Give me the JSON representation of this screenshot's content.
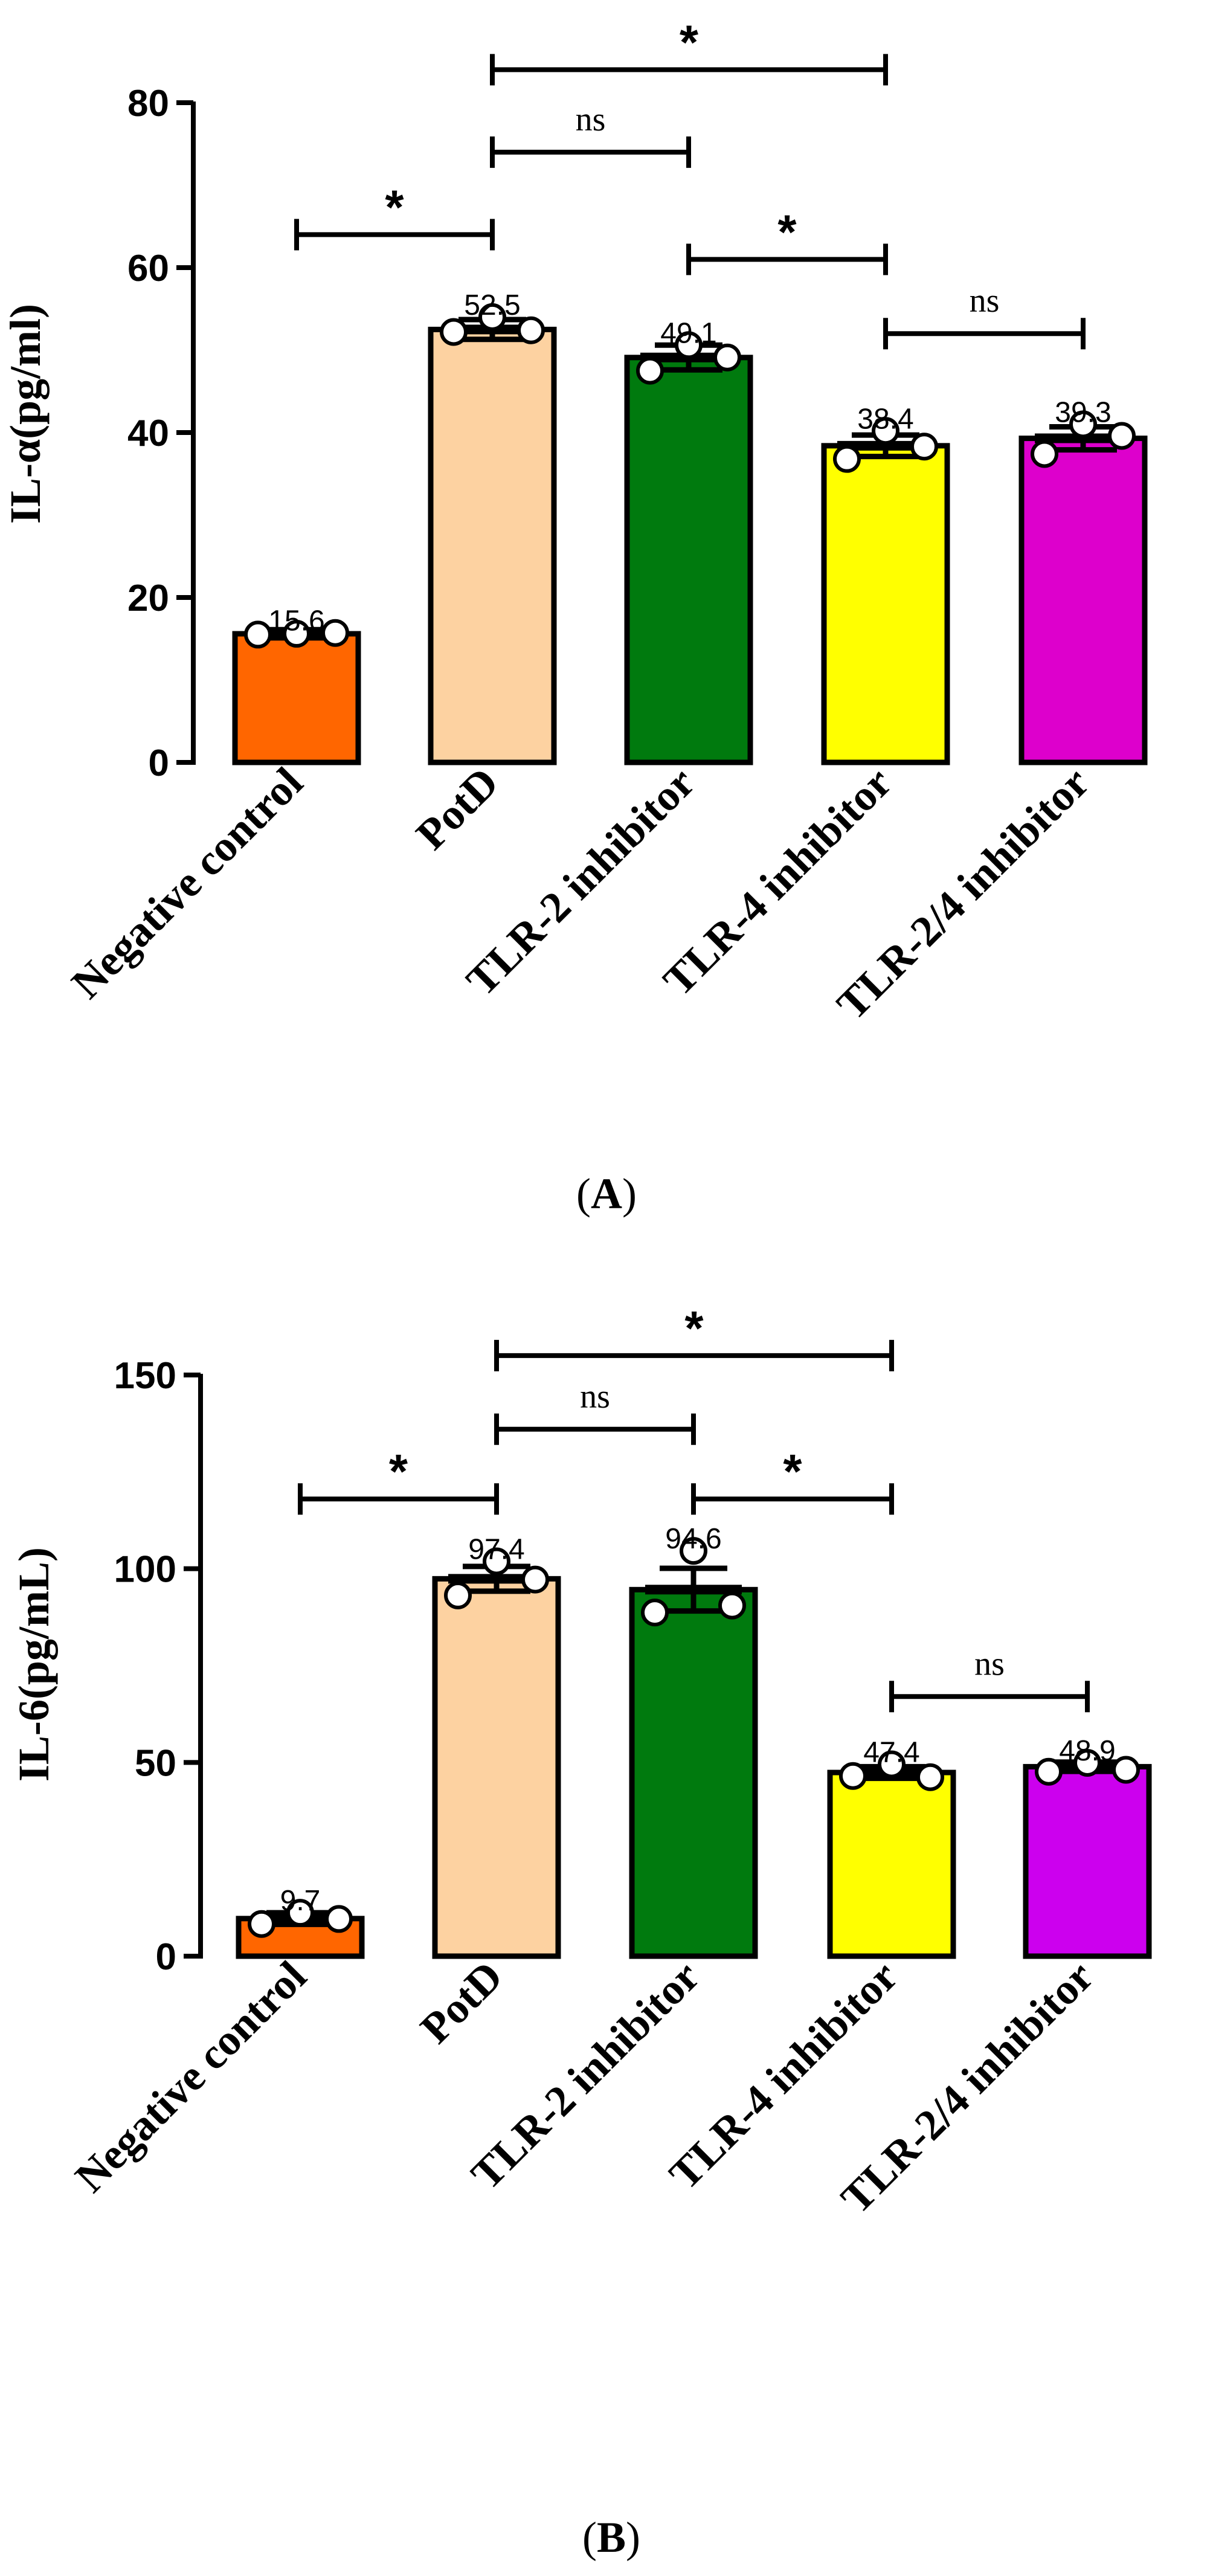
{
  "chart_data": [
    {
      "type": "bar",
      "panel_label": "(A)",
      "panel_letter": "A",
      "ylabel": "IL-α(pg/ml)",
      "ylim": [
        0,
        80
      ],
      "yticks": [
        0,
        20,
        40,
        60,
        80
      ],
      "categories": [
        "Negative control",
        "PotD",
        "TLR-2 inhibitor",
        "TLR-4 inhibitor",
        "TLR-2/4 inhibitor"
      ],
      "values": [
        15.6,
        52.5,
        49.1,
        38.4,
        39.3
      ],
      "value_labels": [
        "15.6",
        "52.5",
        "49.1",
        "38.4",
        "39.3"
      ],
      "sem": [
        0.5,
        1.2,
        1.5,
        1.3,
        1.4
      ],
      "points": [
        [
          15.5,
          15.6,
          15.7
        ],
        [
          52.2,
          54.0,
          52.4
        ],
        [
          47.5,
          50.6,
          49.1
        ],
        [
          36.8,
          40.2,
          38.3
        ],
        [
          37.4,
          41.0,
          39.6
        ]
      ],
      "colors": [
        "#ff6600",
        "#fdd2a1",
        "#007a0e",
        "#ffff00",
        "#dd00cc"
      ],
      "significance": [
        {
          "from": 0,
          "to": 1,
          "label": "*",
          "level": 64
        },
        {
          "from": 1,
          "to": 2,
          "label": "ns",
          "level": 74
        },
        {
          "from": 1,
          "to": 3,
          "label": "*",
          "level": 84
        },
        {
          "from": 2,
          "to": 3,
          "label": "*",
          "level": 61
        },
        {
          "from": 3,
          "to": 4,
          "label": "ns",
          "level": 52
        }
      ]
    },
    {
      "type": "bar",
      "panel_label": "(B)",
      "panel_letter": "B",
      "ylabel": "IL-6(pg/mL)",
      "ylim": [
        0,
        150
      ],
      "yticks": [
        0,
        50,
        100,
        150
      ],
      "categories": [
        "Negative control",
        "PotD",
        "TLR-2 inhibitor",
        "TLR-4 inhibitor",
        "TLR-2/4 inhibitor"
      ],
      "values": [
        9.7,
        97.4,
        94.6,
        47.4,
        48.9
      ],
      "value_labels": [
        "9.7",
        "97.4",
        "94.6",
        "47.4",
        "48.9"
      ],
      "sem": [
        1.5,
        3.2,
        5.5,
        1.5,
        1.2
      ],
      "points": [
        [
          8.3,
          11.2,
          9.6
        ],
        [
          93.1,
          101.9,
          97.2
        ],
        [
          88.7,
          104.6,
          90.5
        ],
        [
          46.5,
          49.5,
          46.2
        ],
        [
          47.6,
          49.9,
          48.1
        ]
      ],
      "colors": [
        "#ff6600",
        "#fdd2a1",
        "#007a0e",
        "#ffff00",
        "#cc00ee"
      ],
      "significance": [
        {
          "from": 0,
          "to": 1,
          "label": "*",
          "level": 118
        },
        {
          "from": 1,
          "to": 2,
          "label": "ns",
          "level": 136
        },
        {
          "from": 1,
          "to": 3,
          "label": "*",
          "level": 155
        },
        {
          "from": 2,
          "to": 3,
          "label": "*",
          "level": 118
        },
        {
          "from": 3,
          "to": 4,
          "label": "ns",
          "level": 67
        }
      ]
    }
  ]
}
